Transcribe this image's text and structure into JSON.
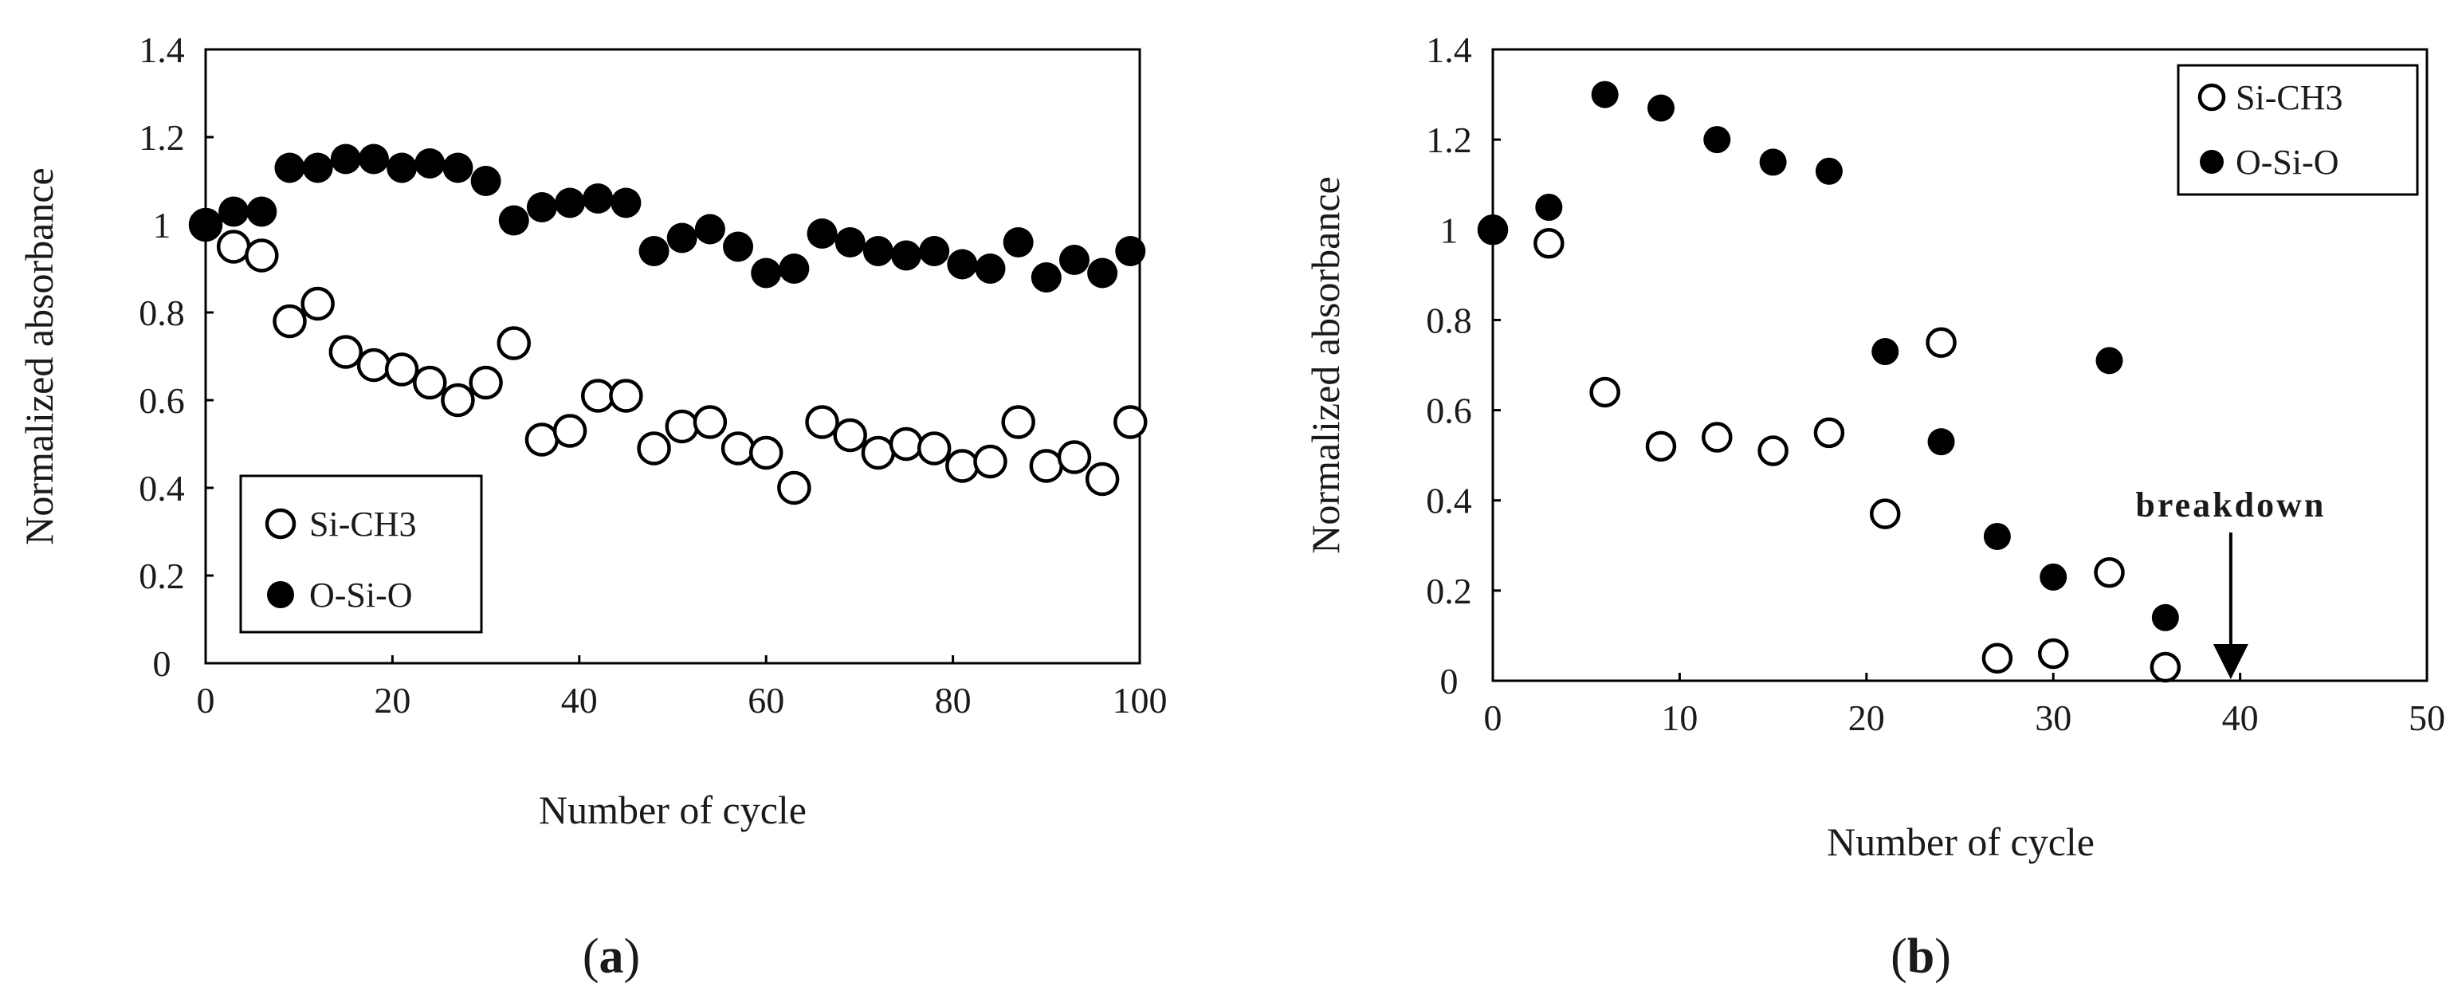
{
  "chart_data": [
    {
      "type": "scatter",
      "panel_label": "(a)",
      "panel_letter": "a",
      "xlabel": "Number of cycle",
      "ylabel": "Normalized absorbance",
      "xlim": [
        0,
        100
      ],
      "ylim": [
        0,
        1.4
      ],
      "xticks": [
        "0",
        "20",
        "40",
        "60",
        "80",
        "100"
      ],
      "yticks": [
        "0",
        "0.2",
        "0.4",
        "0.6",
        "0.8",
        "1",
        "1.2",
        "1.4"
      ],
      "grid": false,
      "legend_position": "bottom-left",
      "series": [
        {
          "name": "Si-CH3",
          "marker": "open-circle",
          "x": [
            0,
            3,
            6,
            9,
            12,
            15,
            18,
            21,
            24,
            27,
            30,
            33,
            36,
            39,
            42,
            45,
            48,
            51,
            54,
            57,
            60,
            63,
            66,
            69,
            72,
            75,
            78,
            81,
            84,
            87,
            90,
            93,
            96,
            99
          ],
          "y": [
            1.0,
            0.95,
            0.93,
            0.78,
            0.82,
            0.71,
            0.68,
            0.67,
            0.64,
            0.6,
            0.64,
            0.73,
            0.51,
            0.53,
            0.61,
            0.61,
            0.49,
            0.54,
            0.55,
            0.49,
            0.48,
            0.4,
            0.55,
            0.52,
            0.48,
            0.5,
            0.49,
            0.45,
            0.46,
            0.55,
            0.45,
            0.47,
            0.42,
            0.55
          ]
        },
        {
          "name": "O-Si-O",
          "marker": "filled-circle",
          "x": [
            0,
            3,
            6,
            9,
            12,
            15,
            18,
            21,
            24,
            27,
            30,
            33,
            36,
            39,
            42,
            45,
            48,
            51,
            54,
            57,
            60,
            63,
            66,
            69,
            72,
            75,
            78,
            81,
            84,
            87,
            90,
            93,
            96,
            99
          ],
          "y": [
            1.0,
            1.03,
            1.03,
            1.13,
            1.13,
            1.15,
            1.15,
            1.13,
            1.14,
            1.13,
            1.1,
            1.01,
            1.04,
            1.05,
            1.06,
            1.05,
            0.94,
            0.97,
            0.99,
            0.95,
            0.89,
            0.9,
            0.98,
            0.96,
            0.94,
            0.93,
            0.94,
            0.91,
            0.9,
            0.96,
            0.88,
            0.92,
            0.89,
            0.94
          ]
        }
      ]
    },
    {
      "type": "scatter",
      "panel_label": "(b)",
      "panel_letter": "b",
      "xlabel": "Number of cycle",
      "ylabel": "Normalized absorbance",
      "xlim": [
        0,
        50
      ],
      "ylim": [
        0,
        1.4
      ],
      "xticks": [
        "0",
        "10",
        "20",
        "30",
        "40",
        "50"
      ],
      "yticks": [
        "0",
        "0.2",
        "0.4",
        "0.6",
        "0.8",
        "1",
        "1.2",
        "1.4"
      ],
      "grid": false,
      "legend_position": "top-right",
      "annotation": {
        "text": "breakdown",
        "x": 39.5,
        "y": 0.0
      },
      "series": [
        {
          "name": "Si-CH3",
          "marker": "open-circle",
          "x": [
            0,
            3,
            6,
            9,
            12,
            15,
            18,
            21,
            24,
            27,
            30,
            33,
            36
          ],
          "y": [
            1.0,
            0.97,
            0.64,
            0.52,
            0.54,
            0.51,
            0.55,
            0.37,
            0.75,
            0.05,
            0.06,
            0.24,
            0.03
          ]
        },
        {
          "name": "O-Si-O",
          "marker": "filled-circle",
          "x": [
            0,
            3,
            6,
            9,
            12,
            15,
            18,
            21,
            24,
            27,
            30,
            33,
            36
          ],
          "y": [
            1.0,
            1.05,
            1.3,
            1.27,
            1.2,
            1.15,
            1.13,
            0.73,
            0.53,
            0.32,
            0.23,
            0.71,
            0.14
          ]
        }
      ]
    }
  ]
}
